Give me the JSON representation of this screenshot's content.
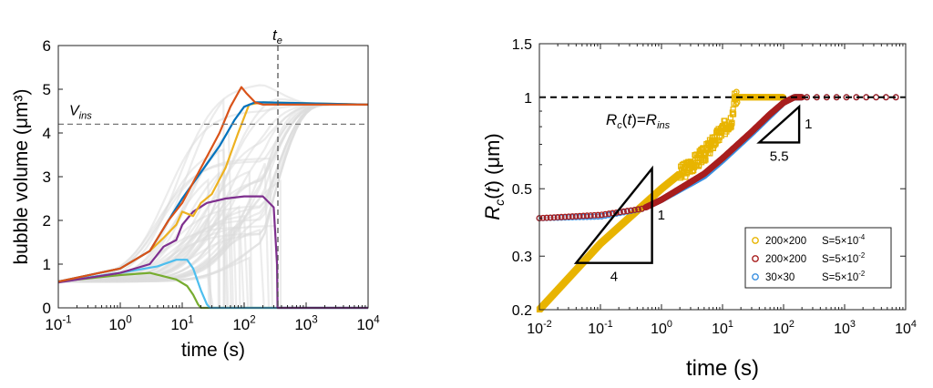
{
  "chart_data": [
    {
      "type": "line",
      "xlabel": "time (s)",
      "ylabel": "bubble volume (μm³)",
      "x_scale": "log",
      "xlim": [
        0.1,
        10000
      ],
      "ylim": [
        0,
        6
      ],
      "x_ticks": [
        {
          "value": 0.1,
          "base": "10",
          "exp": "-1"
        },
        {
          "value": 1,
          "base": "10",
          "exp": "0"
        },
        {
          "value": 10,
          "base": "10",
          "exp": "1"
        },
        {
          "value": 100,
          "base": "10",
          "exp": "2"
        },
        {
          "value": 1000,
          "base": "10",
          "exp": "3"
        },
        {
          "value": 10000,
          "base": "10",
          "exp": "4"
        }
      ],
      "y_ticks": [
        0,
        1,
        2,
        3,
        4,
        5,
        6
      ],
      "annotations": {
        "v_ins": {
          "base": "V",
          "sub": "ins",
          "value": 4.2
        },
        "t_e": {
          "base": "t",
          "sub": "e",
          "value": 350
        }
      },
      "background_band": {
        "color": "#dddddd",
        "lower_y_at_10s": 1.5,
        "upper_y_at_100s": 5.4
      },
      "series": [
        {
          "color": "#77ac30",
          "points": [
            [
              0.1,
              0.6
            ],
            [
              1,
              0.75
            ],
            [
              3,
              0.8
            ],
            [
              8,
              0.65
            ],
            [
              12,
              0.5
            ],
            [
              15,
              0.3
            ],
            [
              18,
              0.08
            ],
            [
              20,
              0
            ],
            [
              10000,
              0
            ]
          ]
        },
        {
          "color": "#4dbeee",
          "points": [
            [
              0.1,
              0.6
            ],
            [
              1,
              0.8
            ],
            [
              4,
              0.95
            ],
            [
              8,
              1.1
            ],
            [
              12,
              1.1
            ],
            [
              15,
              0.9
            ],
            [
              20,
              0.4
            ],
            [
              25,
              0.08
            ],
            [
              28,
              0
            ],
            [
              10000,
              0
            ]
          ]
        },
        {
          "color": "#7e2f8e",
          "points": [
            [
              0.1,
              0.58
            ],
            [
              1,
              0.8
            ],
            [
              3,
              1.0
            ],
            [
              5,
              1.4
            ],
            [
              8,
              1.55
            ],
            [
              10,
              1.9
            ],
            [
              15,
              2.2
            ],
            [
              25,
              2.4
            ],
            [
              50,
              2.5
            ],
            [
              100,
              2.55
            ],
            [
              200,
              2.55
            ],
            [
              300,
              2.3
            ],
            [
              340,
              1.0
            ],
            [
              345,
              0
            ],
            [
              10000,
              0
            ]
          ]
        },
        {
          "color": "#edb120",
          "points": [
            [
              0.1,
              0.6
            ],
            [
              1,
              0.9
            ],
            [
              3,
              1.3
            ],
            [
              5,
              1.6
            ],
            [
              8,
              1.9
            ],
            [
              10,
              2.2
            ],
            [
              15,
              2.1
            ],
            [
              20,
              2.4
            ],
            [
              30,
              2.6
            ],
            [
              50,
              3.2
            ],
            [
              80,
              4.0
            ],
            [
              120,
              4.65
            ],
            [
              200,
              4.7
            ],
            [
              10000,
              4.65
            ]
          ]
        },
        {
          "color": "#0072bd",
          "points": [
            [
              0.1,
              0.6
            ],
            [
              1,
              0.9
            ],
            [
              3,
              1.3
            ],
            [
              6,
              2.0
            ],
            [
              10,
              2.5
            ],
            [
              20,
              3.1
            ],
            [
              40,
              3.7
            ],
            [
              70,
              4.3
            ],
            [
              100,
              4.6
            ],
            [
              150,
              4.7
            ],
            [
              200,
              4.7
            ],
            [
              10000,
              4.65
            ]
          ]
        },
        {
          "color": "#d95319",
          "points": [
            [
              0.1,
              0.6
            ],
            [
              1,
              0.9
            ],
            [
              3,
              1.3
            ],
            [
              6,
              2.0
            ],
            [
              10,
              2.4
            ],
            [
              20,
              3.2
            ],
            [
              40,
              4.0
            ],
            [
              60,
              4.6
            ],
            [
              90,
              5.05
            ],
            [
              110,
              4.9
            ],
            [
              150,
              4.7
            ],
            [
              200,
              4.65
            ],
            [
              10000,
              4.65
            ]
          ]
        }
      ]
    },
    {
      "type": "scatter",
      "xlabel": "time (s)",
      "ylabel_base": "R",
      "ylabel_sub": "c",
      "ylabel_arg": "t",
      "ylabel_unit": "(μm)",
      "x_scale": "log",
      "y_scale": "log",
      "xlim": [
        0.01,
        10000
      ],
      "ylim": [
        0.2,
        1.5
      ],
      "x_ticks": [
        {
          "value": 0.01,
          "base": "10",
          "exp": "-2"
        },
        {
          "value": 0.1,
          "base": "10",
          "exp": "-1"
        },
        {
          "value": 1,
          "base": "10",
          "exp": "0"
        },
        {
          "value": 10,
          "base": "10",
          "exp": "1"
        },
        {
          "value": 100,
          "base": "10",
          "exp": "2"
        },
        {
          "value": 1000,
          "base": "10",
          "exp": "3"
        },
        {
          "value": 10000,
          "base": "10",
          "exp": "4"
        }
      ],
      "y_ticks": [
        {
          "value": 0.2,
          "label": "0.2"
        },
        {
          "value": 0.3,
          "label": "0.3"
        },
        {
          "value": 0.5,
          "label": "0.5"
        },
        {
          "value": 1,
          "label": "1"
        },
        {
          "value": 1.5,
          "label": "1.5"
        }
      ],
      "reference_line": {
        "y": 1.0,
        "text": "Rc(t)=Rins"
      },
      "slope_triangles": [
        {
          "run_label": "4",
          "rise_label": "1",
          "slope": 0.25,
          "x_range": [
            0.04,
            0.7
          ],
          "y_bottom": 0.285
        },
        {
          "run_label": "5.5",
          "rise_label": "1",
          "slope": 0.18,
          "x_range": [
            40,
            180
          ],
          "y_bottom": 0.71
        }
      ],
      "legend": {
        "position": "bottom-right",
        "entries": [
          {
            "size": "200×200",
            "s_base": "S=5×10",
            "s_exp": "-4",
            "color": "#e8b400"
          },
          {
            "size": "200×200",
            "s_base": "S=5×10",
            "s_exp": "-2",
            "color": "#a81e1e"
          },
          {
            "size": "30×30",
            "s_base": "S=5×10",
            "s_exp": "-2",
            "color": "#3a8fe0"
          }
        ]
      },
      "series": [
        {
          "color": "#e8b400",
          "points": [
            [
              0.01,
              0.2
            ],
            [
              0.1,
              0.33
            ],
            [
              1,
              0.5
            ],
            [
              5,
              0.65
            ],
            [
              10,
              0.78
            ],
            [
              14,
              0.85
            ],
            [
              16,
              1.0
            ],
            [
              20,
              1.0
            ],
            [
              50,
              1.0
            ],
            [
              100,
              1.0
            ]
          ]
        },
        {
          "color": "#3a8fe0",
          "points": [
            [
              0.01,
              0.4
            ],
            [
              0.1,
              0.405
            ],
            [
              0.5,
              0.43
            ],
            [
              1,
              0.46
            ],
            [
              5,
              0.55
            ],
            [
              10,
              0.62
            ],
            [
              30,
              0.76
            ],
            [
              60,
              0.87
            ],
            [
              100,
              0.96
            ],
            [
              150,
              1.0
            ],
            [
              500,
              1.0
            ],
            [
              10000,
              1.0
            ]
          ]
        },
        {
          "color": "#a81e1e",
          "points": [
            [
              0.01,
              0.4
            ],
            [
              0.1,
              0.41
            ],
            [
              0.5,
              0.43
            ],
            [
              1,
              0.46
            ],
            [
              5,
              0.56
            ],
            [
              10,
              0.63
            ],
            [
              30,
              0.77
            ],
            [
              60,
              0.88
            ],
            [
              100,
              0.96
            ],
            [
              150,
              1.0
            ],
            [
              500,
              1.0
            ],
            [
              10000,
              1.0
            ]
          ]
        }
      ]
    }
  ]
}
